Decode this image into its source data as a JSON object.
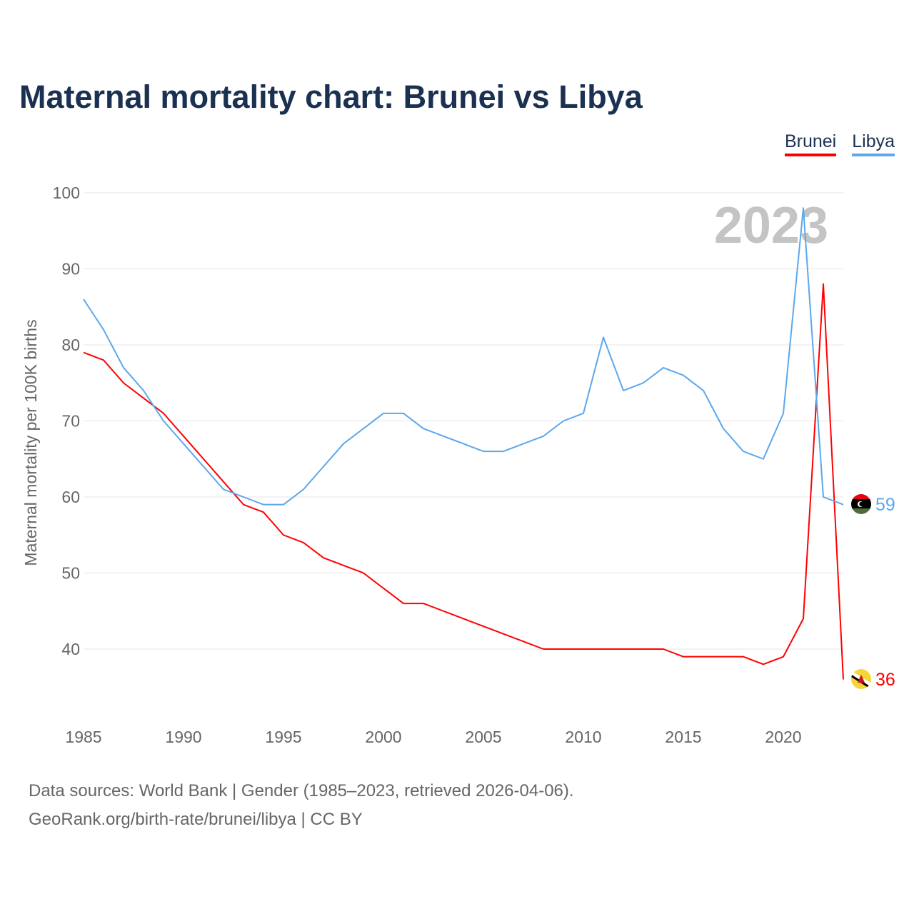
{
  "title": "Maternal mortality chart: Brunei vs Libya",
  "footer": {
    "line1": "Data sources: World Bank | Gender (1985–2023, retrieved 2026-04-06).",
    "line2": "GeoRank.org/birth-rate/brunei/libya | CC BY"
  },
  "chart_data": {
    "type": "line",
    "title": "Maternal mortality chart: Brunei vs Libya",
    "xlabel": "",
    "ylabel": "Maternal mortality per 100K births",
    "watermark_year": "2023",
    "xlim": [
      1985,
      2023
    ],
    "ylim": [
      30,
      100
    ],
    "xticks": [
      1985,
      1990,
      1995,
      2000,
      2005,
      2010,
      2015,
      2020
    ],
    "yticks": [
      40,
      50,
      60,
      70,
      80,
      90,
      100
    ],
    "grid": true,
    "legend_placement": "top-right",
    "x": [
      1985,
      1986,
      1987,
      1988,
      1989,
      1990,
      1991,
      1992,
      1993,
      1994,
      1995,
      1996,
      1997,
      1998,
      1999,
      2000,
      2001,
      2002,
      2003,
      2004,
      2005,
      2006,
      2007,
      2008,
      2009,
      2010,
      2011,
      2012,
      2013,
      2014,
      2015,
      2016,
      2017,
      2018,
      2019,
      2020,
      2021,
      2022,
      2023
    ],
    "series": [
      {
        "name": "Brunei",
        "color": "#ff0000",
        "end_label": "36",
        "values": [
          79,
          78,
          75,
          73,
          71,
          68,
          65,
          62,
          59,
          58,
          55,
          54,
          52,
          51,
          50,
          48,
          46,
          46,
          45,
          44,
          43,
          42,
          41,
          40,
          40,
          40,
          40,
          40,
          40,
          40,
          39,
          39,
          39,
          39,
          38,
          39,
          44,
          88,
          36
        ]
      },
      {
        "name": "Libya",
        "color": "#5ba8ec",
        "end_label": "59",
        "values": [
          86,
          82,
          77,
          74,
          70,
          67,
          64,
          61,
          60,
          59,
          59,
          61,
          64,
          67,
          69,
          71,
          71,
          69,
          68,
          67,
          66,
          66,
          67,
          68,
          70,
          71,
          81,
          74,
          75,
          77,
          76,
          74,
          69,
          66,
          65,
          71,
          98,
          60,
          59
        ]
      }
    ]
  }
}
